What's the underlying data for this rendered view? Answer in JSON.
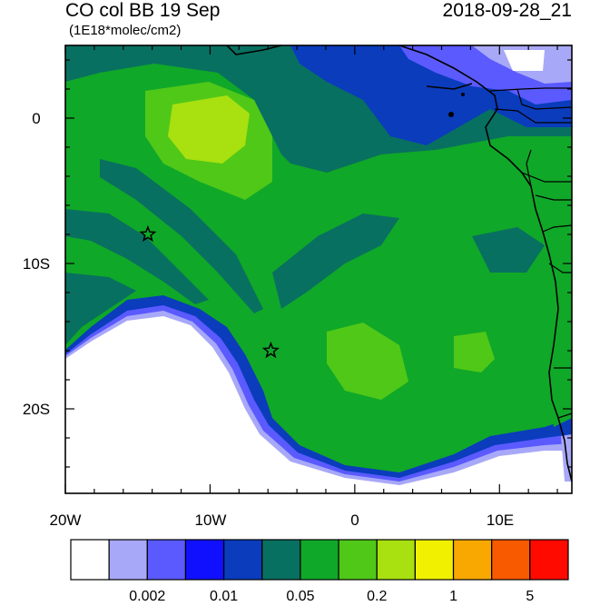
{
  "title": "CO col BB 19 Sep",
  "timestamp": "2018-09-28_21",
  "units": "(1E18*molec/cm2)",
  "axes": {
    "x_ticks": [
      "20W",
      "10W",
      "0",
      "10E"
    ],
    "y_ticks": [
      "0",
      "10S",
      "20S"
    ]
  },
  "markers": [
    {
      "name": "star-1",
      "lon": -14.3,
      "lat": -8.0
    },
    {
      "name": "star-2",
      "lon": -5.8,
      "lat": -16.0
    }
  ],
  "colorbar": {
    "colors": [
      "#ffffff",
      "#a8a8f8",
      "#5a5aff",
      "#1010ff",
      "#0a3cbc",
      "#087060",
      "#10a828",
      "#50c818",
      "#a8e010",
      "#f0f000",
      "#f8a800",
      "#f85a00",
      "#ff0a00"
    ],
    "labels": [
      "0.002",
      "0.01",
      "0.05",
      "0.2",
      "1",
      "5"
    ]
  },
  "colors": {
    "ocean_outside": "#ffffff",
    "dark_green": "#087060",
    "green": "#10a828",
    "light_green": "#50c818",
    "yellow_green": "#a8e010",
    "blue": "#0a3cbc",
    "medium_blue": "#5a5aff",
    "light_blue": "#a8a8f8",
    "bright_blue": "#1010ff"
  }
}
